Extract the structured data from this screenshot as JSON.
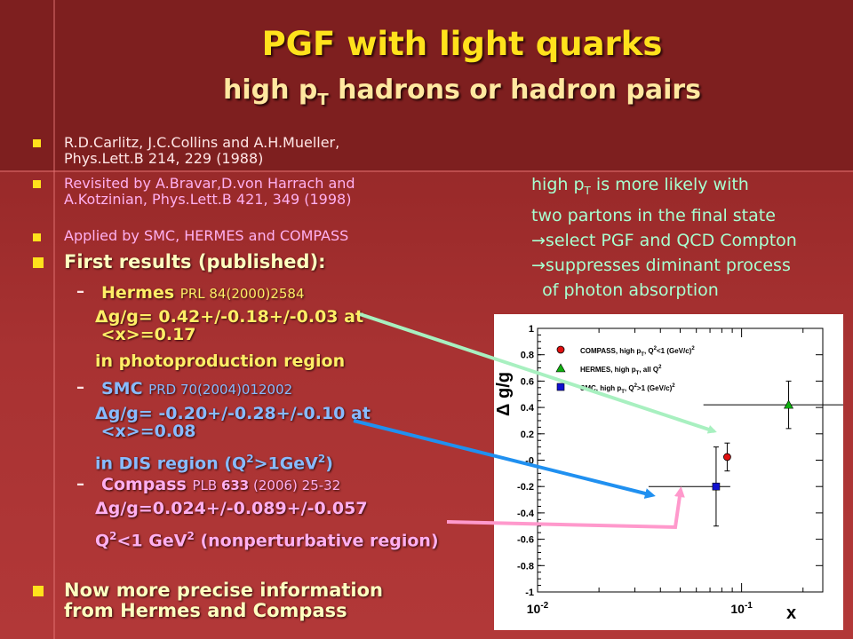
{
  "title": "PGF with light quarks",
  "subtitle_pre": "high p",
  "subtitle_sub": "T",
  "subtitle_post": " hadrons or hadron pairs",
  "refs": {
    "r1_line1": "R.D.Carlitz, J.C.Collins and A.H.Mueller,",
    "r1_line2": "Phys.Lett.B 214, 229 (1988)",
    "r2_line1": "Revisited by A.Bravar,D.von Harrach and",
    "r2_line2": "A.Kotzinian, Phys.Lett.B 421, 349 (1998)",
    "r3": "Applied by SMC, HERMES and COMPASS"
  },
  "first_results": "First results (published):",
  "hermes": {
    "name": "Hermes",
    "ref": "PRL 84(2000)2584",
    "value_line1": "g/g= 0.42+/-0.18+/-0.03 at",
    "value_line2": "<x>=0.17",
    "region": "in photoproduction region"
  },
  "smc": {
    "name": "SMC",
    "ref": "PRD 70(2004)012002",
    "value_line1": "g/g= -0.20+/-0.28+/-0.10 at",
    "value_line2": "<x>=0.08",
    "region_pre": "in DIS region (Q",
    "region_mid": ">1GeV",
    "region_post": ")"
  },
  "compass": {
    "name": "Compass",
    "ref_pre": "PLB ",
    "ref_vol": "633",
    "ref_post": " (2006) 25-32",
    "value": "g/g=0.024+/-0.089+/-0.057",
    "region_pre": "Q",
    "region_mid": "<1 GeV",
    "region_post": " (nonperturbative region)"
  },
  "delta_symbol": "Δ",
  "sup2": "2",
  "dash": "–",
  "conclusion_line1": "Now more precise information",
  "conclusion_line2": "from Hermes and Compass",
  "side": {
    "line1_pre": "high p",
    "line1_sub": "T",
    "line1_post": " is more likely with",
    "line2": "two partons in the final state",
    "line3": "select PGF and QCD Compton",
    "line4": "suppresses diminant process",
    "line5": "of photon absorption",
    "arrow_glyph": "→"
  },
  "chart_data": {
    "type": "scatter",
    "xlabel": "x",
    "ylabel": "Δ g/g",
    "x_scale": "log",
    "xlim": [
      0.01,
      0.25
    ],
    "ylim": [
      -1,
      1
    ],
    "x_tick_labels": [
      "10-2",
      "10-1"
    ],
    "y_ticks": [
      1,
      0.8,
      0.6,
      0.4,
      0.2,
      0,
      -0.2,
      -0.4,
      -0.6,
      -0.8,
      -1
    ],
    "y_tick_labels": [
      "1",
      "0.8",
      "0.6",
      "0.4",
      "0.2",
      "-0",
      "-0.2",
      "-0.4",
      "-0.6",
      "-0.8",
      "-1"
    ],
    "legend_position": "top",
    "series": [
      {
        "name": "COMPASS, high p_T, Q^2<1 (GeV/c)^2",
        "color": "#e01010",
        "marker": "circle",
        "x": 0.085,
        "y": 0.024,
        "stat": 0.089,
        "tot": 0.106
      },
      {
        "name": "HERMES, high p_T, all Q^2",
        "color": "#10b010",
        "marker": "triangle",
        "x": 0.17,
        "y": 0.42,
        "stat": 0.18,
        "tot": 0.18,
        "x_low": 0.065,
        "x_high": 0.34
      },
      {
        "name": "SMC, high p_T, Q^2>1 (GeV/c)^2",
        "color": "#1010d0",
        "marker": "square",
        "x": 0.075,
        "y": -0.2,
        "stat": 0.28,
        "tot": 0.3,
        "x_low": 0.035,
        "x_high": 0.088
      }
    ],
    "legend": [
      {
        "label_pre": "COMPASS, high p",
        "label_sub": "T",
        "label_post": ", Q",
        "label_sup": "2",
        "label_end": "<1 (GeV/c)",
        "label_sup2": "2"
      },
      {
        "label_pre": "HERMES, high p",
        "label_sub": "T",
        "label_post": ", all Q",
        "label_sup": "2",
        "label_end": "",
        "label_sup2": ""
      },
      {
        "label_pre": "SMC, high p",
        "label_sub": "T",
        "label_post": ", Q",
        "label_sup": "2",
        "label_end": ">1 (GeV/c)",
        "label_sup2": "2"
      }
    ]
  },
  "colors": {
    "title": "#ffe21c",
    "arrow_hermes": "#a8f0c0",
    "arrow_smc": "#2090f0",
    "arrow_compass": "#ff99cc"
  }
}
